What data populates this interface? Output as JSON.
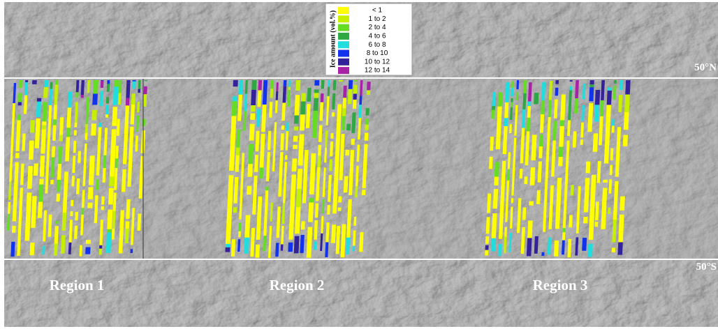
{
  "legend": {
    "title": "Ice amount (vol.%)",
    "items": [
      {
        "label": "< 1",
        "color": "#ffff00"
      },
      {
        "label": "1 to 2",
        "color": "#c6f000"
      },
      {
        "label": "2 to 4",
        "color": "#66dd22"
      },
      {
        "label": "4 to 6",
        "color": "#2fa844"
      },
      {
        "label": "6 to 8",
        "color": "#22dddd"
      },
      {
        "label": "8 to 10",
        "color": "#1133ee"
      },
      {
        "label": "10 to 12",
        "color": "#33229a"
      },
      {
        "label": "12 to 14",
        "color": "#a822a8"
      }
    ]
  },
  "latitude_labels": [
    "50°N",
    "50°S"
  ],
  "regions": [
    "Region 1",
    "Region 2",
    "Region 3"
  ]
}
